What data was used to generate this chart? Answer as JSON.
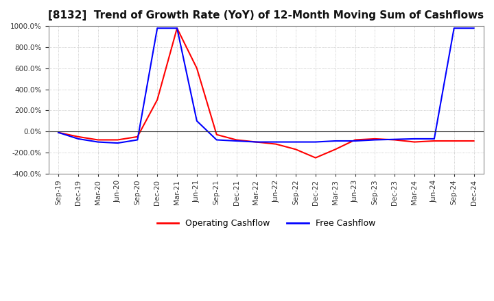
{
  "title": "[8132]  Trend of Growth Rate (YoY) of 12-Month Moving Sum of Cashflows",
  "title_fontsize": 11,
  "ylim": [
    -400,
    1000
  ],
  "yticks": [
    -400,
    -200,
    0,
    200,
    400,
    600,
    800,
    1000
  ],
  "background_color": "#ffffff",
  "plot_bg_color": "#ffffff",
  "grid_color": "#aaaaaa",
  "legend_labels": [
    "Operating Cashflow",
    "Free Cashflow"
  ],
  "legend_colors": [
    "#ff0000",
    "#0000ff"
  ],
  "x_labels": [
    "Sep-19",
    "Dec-19",
    "Mar-20",
    "Jun-20",
    "Sep-20",
    "Dec-20",
    "Mar-21",
    "Jun-21",
    "Sep-21",
    "Dec-21",
    "Mar-22",
    "Jun-22",
    "Sep-22",
    "Dec-22",
    "Mar-23",
    "Jun-23",
    "Sep-23",
    "Dec-23",
    "Mar-24",
    "Jun-24",
    "Sep-24",
    "Dec-24"
  ],
  "operating_cashflow": [
    -10,
    -50,
    -80,
    -80,
    -50,
    300,
    980,
    600,
    -30,
    -80,
    -100,
    -120,
    -170,
    -250,
    -170,
    -80,
    -70,
    -80,
    -100,
    -90,
    -90,
    -90
  ],
  "free_cashflow": [
    -10,
    -70,
    -100,
    -110,
    -80,
    980,
    980,
    100,
    -80,
    -90,
    -100,
    -100,
    -100,
    -100,
    -90,
    -90,
    -80,
    -75,
    -70,
    -70,
    980,
    980
  ]
}
